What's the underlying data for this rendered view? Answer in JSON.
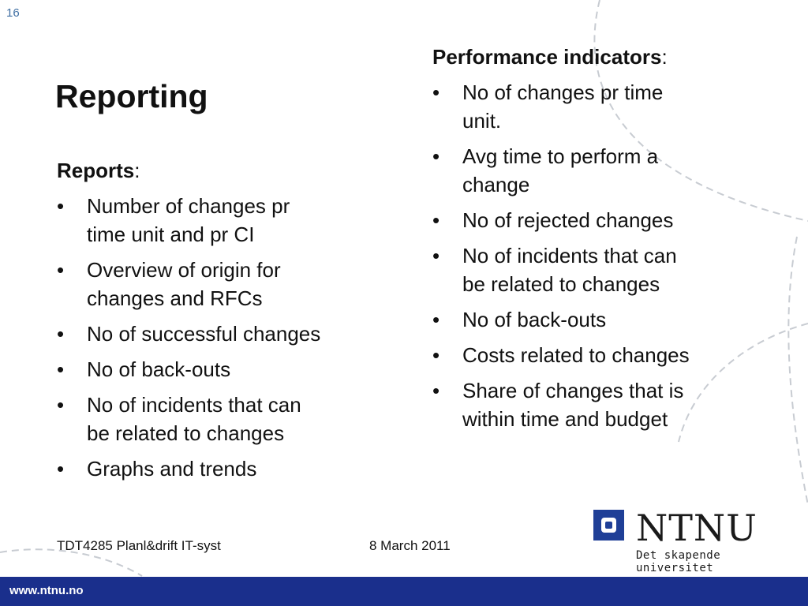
{
  "slide": {
    "number": "16",
    "title": "Reporting"
  },
  "reports": {
    "heading": "Reports",
    "heading_suffix": ":",
    "bullet": "•",
    "items": [
      {
        "line1": "Number of changes pr",
        "line2": "time unit and pr CI"
      },
      {
        "line1": "Overview of origin for",
        "line2": "changes and RFCs"
      },
      {
        "line1": "No of successful changes",
        "line2": ""
      },
      {
        "line1": "No of back-outs",
        "line2": ""
      },
      {
        "line1": "No of incidents that can",
        "line2": "be related to changes"
      },
      {
        "line1": "Graphs and trends",
        "line2": ""
      }
    ]
  },
  "performance": {
    "heading": "Performance indicators",
    "heading_suffix": ":",
    "bullet": "•",
    "items": [
      {
        "line1": "No of changes pr time",
        "line2": "unit."
      },
      {
        "line1": "Avg time to perform a",
        "line2": "change"
      },
      {
        "line1": "No of rejected changes",
        "line2": ""
      },
      {
        "line1": "No of incidents that can",
        "line2": "be related to changes"
      },
      {
        "line1": "No of back-outs",
        "line2": ""
      },
      {
        "line1": "Costs related to changes",
        "line2": ""
      },
      {
        "line1": "Share of changes that is",
        "line2": "within time and budget"
      }
    ]
  },
  "footer": {
    "course": "TDT4285 Planl&drift IT-syst",
    "date": "8 March 2011",
    "url": "www.ntnu.no"
  },
  "logo": {
    "wordmark": "NTNU",
    "tagline": "Det skapende universitet",
    "icon": "ntnu-logo-icon"
  },
  "colors": {
    "brand_blue": "#1a2f8c",
    "logo_blue": "#1f3f97",
    "slide_number": "#3f6fa3",
    "decoration": "#c8ccd2"
  }
}
